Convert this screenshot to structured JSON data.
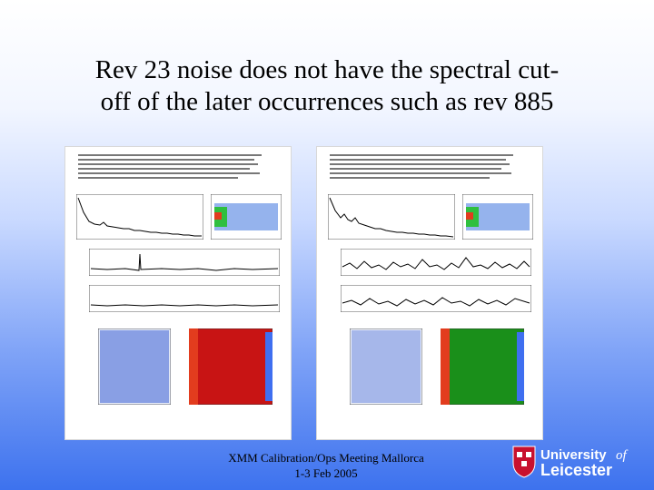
{
  "slide": {
    "title_line1": "Rev 23 noise does not have the spectral cut-",
    "title_line2": "off of the later occurrences such as rev 885",
    "footer_line1": "XMM Calibration/Ops Meeting Mallorca",
    "footer_line2": "1-3 Feb 2005"
  },
  "logo": {
    "line1": "University",
    "of": "of",
    "line2": "Leicester",
    "color": "#1e2a78"
  },
  "panels": {
    "left_accent": "#c81414",
    "right_accent": "#1a8f1a"
  }
}
